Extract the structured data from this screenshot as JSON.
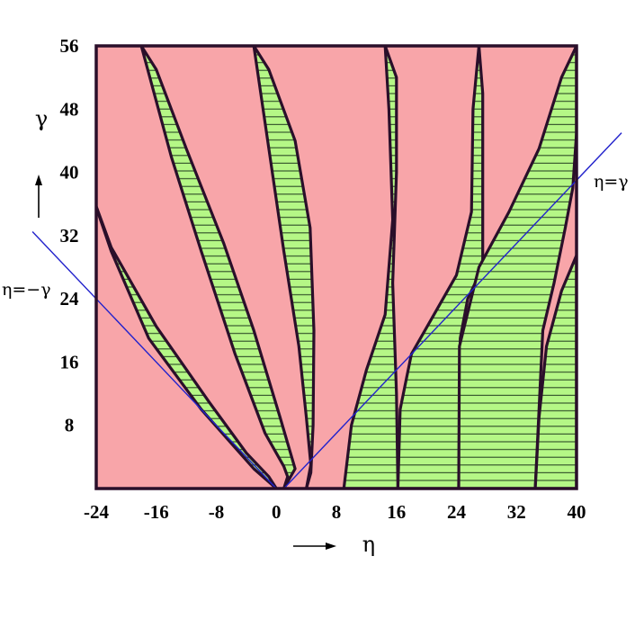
{
  "chart_data": {
    "type": "area",
    "xlabel": "η",
    "ylabel": "γ",
    "xlim": [
      -24,
      40
    ],
    "ylim": [
      0,
      56
    ],
    "x_ticks": [
      -24,
      -16,
      -8,
      0,
      8,
      16,
      24,
      32,
      40
    ],
    "x_tick_labels": [
      "-24",
      "-16",
      "-8",
      "0",
      "8",
      "16",
      "24",
      "32",
      "40"
    ],
    "y_ticks": [
      8,
      16,
      24,
      32,
      40,
      48,
      56
    ],
    "y_tick_labels": [
      "8",
      "16",
      "24",
      "32",
      "40",
      "48",
      "56"
    ],
    "lines": [
      {
        "label": "η=γ",
        "points": [
          [
            1,
            0
          ],
          [
            40,
            39
          ]
        ],
        "color": "#2222cc"
      },
      {
        "label": "η=−γ",
        "points": [
          [
            0,
            0
          ],
          [
            -24,
            24
          ]
        ],
        "color": "#2222cc"
      }
    ],
    "colors": {
      "background_region": "#f8a5a9",
      "band_region": "#b5f786",
      "band_hatch": "#2d4a26",
      "boundary": "#2a0f2a"
    },
    "regions": [
      {
        "points": [
          [
            0,
            0
          ],
          [
            -3,
            2.5
          ],
          [
            -10,
            10
          ],
          [
            -17,
            19
          ],
          [
            -22,
            30
          ],
          [
            -24.5,
            37
          ],
          [
            -22,
            30.5
          ],
          [
            -16,
            20.5
          ],
          [
            -9,
            11
          ],
          [
            -4,
            4.5
          ],
          [
            -1,
            1.5
          ]
        ]
      },
      {
        "points": [
          [
            1,
            0
          ],
          [
            1.5,
            1.5
          ],
          [
            1,
            2.8
          ],
          [
            -1.5,
            7
          ],
          [
            -5.5,
            17
          ],
          [
            -10,
            30
          ],
          [
            -14,
            42
          ],
          [
            -18,
            56
          ],
          [
            -16,
            53
          ],
          [
            -12,
            43
          ],
          [
            -7,
            31
          ],
          [
            -3,
            20
          ],
          [
            0.5,
            9
          ],
          [
            2.5,
            2.5
          ]
        ]
      },
      {
        "points": [
          [
            4,
            0
          ],
          [
            4.6,
            3
          ],
          [
            4,
            9
          ],
          [
            3,
            18
          ],
          [
            1,
            30
          ],
          [
            -1,
            43
          ],
          [
            -3,
            56
          ],
          [
            -1,
            53
          ],
          [
            2.5,
            44
          ],
          [
            4.5,
            33
          ],
          [
            5,
            20
          ],
          [
            4.9,
            8
          ],
          [
            4.6,
            2
          ]
        ]
      },
      {
        "points": [
          [
            9,
            0
          ],
          [
            10,
            8
          ],
          [
            12,
            15
          ],
          [
            14.5,
            22
          ],
          [
            15.5,
            34
          ],
          [
            15,
            48
          ],
          [
            14.5,
            56
          ],
          [
            16,
            52
          ],
          [
            16,
            40
          ],
          [
            15.5,
            26
          ],
          [
            16,
            12
          ],
          [
            16.2,
            0
          ]
        ]
      },
      {
        "points": [
          [
            16.2,
            0
          ],
          [
            16.5,
            10
          ],
          [
            18,
            17
          ],
          [
            21,
            22
          ],
          [
            24,
            27
          ],
          [
            26,
            35
          ],
          [
            26.2,
            48
          ],
          [
            27,
            56
          ],
          [
            27.5,
            50
          ],
          [
            27.5,
            38
          ],
          [
            27.5,
            28
          ],
          [
            25.5,
            24
          ],
          [
            24.5,
            19
          ],
          [
            24.3,
            0
          ]
        ]
      },
      {
        "points": [
          [
            24.3,
            0
          ],
          [
            24.4,
            18
          ],
          [
            27,
            28
          ],
          [
            31,
            35
          ],
          [
            35,
            43
          ],
          [
            38,
            52
          ],
          [
            40,
            56
          ],
          [
            40,
            45
          ],
          [
            39.5,
            38
          ],
          [
            38.5,
            33
          ],
          [
            37,
            26
          ],
          [
            35.5,
            20
          ],
          [
            34.5,
            0
          ]
        ]
      },
      {
        "points": [
          [
            34.5,
            0
          ],
          [
            35,
            9
          ],
          [
            36,
            18
          ],
          [
            38,
            25
          ],
          [
            40,
            29.5
          ],
          [
            40,
            0
          ]
        ]
      }
    ]
  }
}
